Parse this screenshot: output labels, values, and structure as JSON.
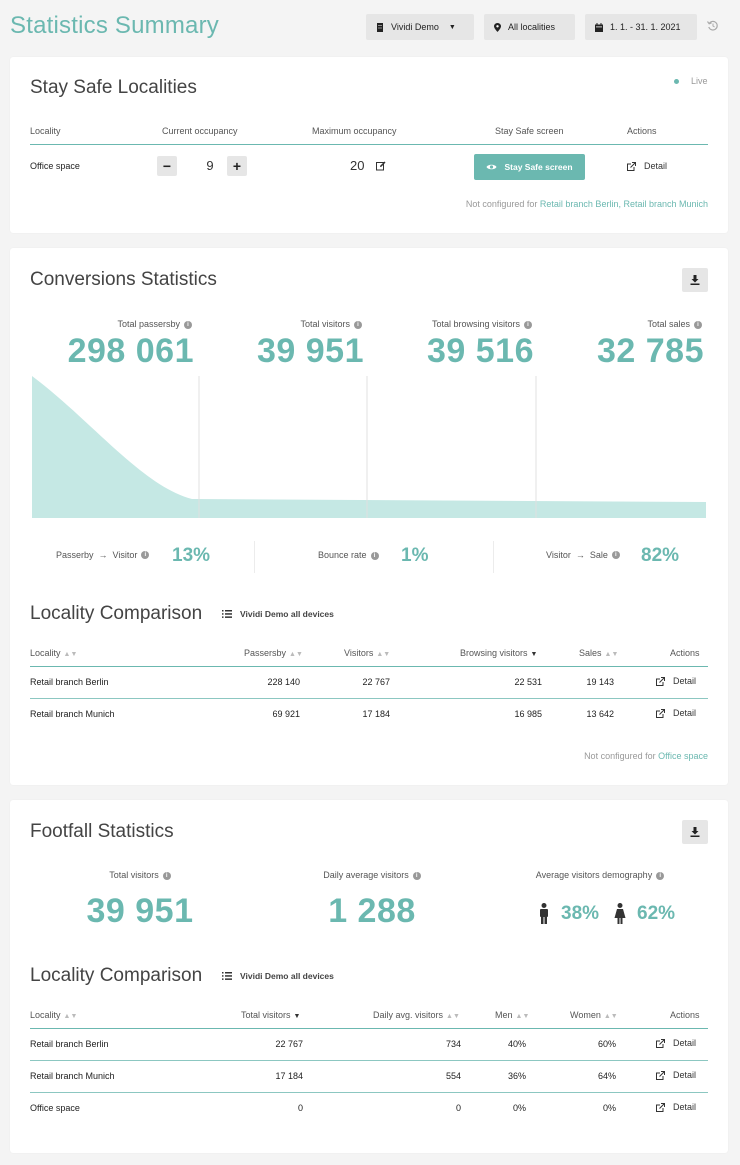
{
  "header": {
    "title": "Statistics Summary",
    "org_button": "Vividi Demo",
    "locality_button": "All localities",
    "date_button": "1. 1. - 31. 1. 2021"
  },
  "stay_safe": {
    "title": "Stay Safe Localities",
    "live_label": "Live",
    "columns": [
      "Locality",
      "Current occupancy",
      "Maximum occupancy",
      "Stay Safe screen",
      "Actions"
    ],
    "row": {
      "locality": "Office space",
      "current": "9",
      "maximum": "20",
      "screen_button": "Stay Safe screen",
      "action": "Detail"
    },
    "not_configured_prefix": "Not configured for",
    "not_configured_links": "Retail branch Berlin, Retail branch Munich"
  },
  "conversions": {
    "title": "Conversions Statistics",
    "stats": [
      {
        "label": "Total passersby",
        "value": "298 061"
      },
      {
        "label": "Total visitors",
        "value": "39 951"
      },
      {
        "label": "Total browsing visitors",
        "value": "39 516"
      },
      {
        "label": "Total sales",
        "value": "32 785"
      }
    ],
    "rates": {
      "passerby_visitor_a": "Passerby",
      "passerby_visitor_b": "Visitor",
      "passerby_visitor_value": "13%",
      "bounce_label": "Bounce rate",
      "bounce_value": "1%",
      "visitor_sale_a": "Visitor",
      "visitor_sale_b": "Sale",
      "visitor_sale_value": "82%"
    },
    "comparison_title": "Locality Comparison",
    "comparison_source": "Vividi Demo all devices",
    "columns": [
      "Locality",
      "Passersby",
      "Visitors",
      "Browsing visitors",
      "Sales",
      "Actions"
    ],
    "rows": [
      {
        "locality": "Retail branch Berlin",
        "passersby": "228 140",
        "visitors": "22 767",
        "browsing": "22 531",
        "sales": "19 143",
        "action": "Detail"
      },
      {
        "locality": "Retail branch Munich",
        "passersby": "69 921",
        "visitors": "17 184",
        "browsing": "16 985",
        "sales": "13 642",
        "action": "Detail"
      }
    ],
    "not_configured_prefix": "Not configured for",
    "not_configured_link": "Office space"
  },
  "footfall": {
    "title": "Footfall Statistics",
    "total_label": "Total visitors",
    "total_value": "39 951",
    "daily_label": "Daily average visitors",
    "daily_value": "1 288",
    "demography_label": "Average visitors demography",
    "men_pct": "38%",
    "women_pct": "62%",
    "comparison_title": "Locality Comparison",
    "comparison_source": "Vividi Demo all devices",
    "columns": [
      "Locality",
      "Total visitors",
      "Daily avg. visitors",
      "Men",
      "Women",
      "Actions"
    ],
    "rows": [
      {
        "locality": "Retail branch Berlin",
        "total": "22 767",
        "daily": "734",
        "men": "40%",
        "women": "60%",
        "action": "Detail"
      },
      {
        "locality": "Retail branch Munich",
        "total": "17 184",
        "daily": "554",
        "men": "36%",
        "women": "64%",
        "action": "Detail"
      },
      {
        "locality": "Office space",
        "total": "0",
        "daily": "0",
        "men": "0%",
        "women": "0%",
        "action": "Detail"
      }
    ]
  },
  "colors": {
    "accent": "#6bb8b0",
    "funnel": "#c5e8e4"
  }
}
